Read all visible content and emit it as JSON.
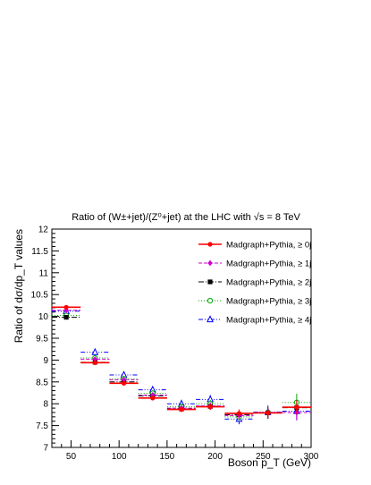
{
  "chart_data": {
    "type": "scatter",
    "title": "Ratio of (W±+jet)/(Z⁰+jet) at the LHC with √s = 8 TeV",
    "xlabel": "Boson p_T (GeV)",
    "ylabel": "Ratio of dσ/dp_T values",
    "xlim": [
      30,
      300
    ],
    "ylim": [
      7,
      12
    ],
    "x_ticks": [
      "50",
      "100",
      "150",
      "200",
      "250",
      "300"
    ],
    "y_ticks": [
      "7",
      "7.5",
      "8",
      "8.5",
      "9",
      "9.5",
      "10",
      "10.5",
      "11",
      "11.5",
      "12"
    ],
    "bin_edges": [
      30,
      60,
      90,
      120,
      150,
      180,
      210,
      240,
      270,
      300
    ],
    "x": [
      45,
      75,
      105,
      135,
      165,
      195,
      225,
      255,
      285
    ],
    "legend_position": "top-right",
    "series": [
      {
        "name": "Madgraph+Pythia, ≥ 0j",
        "color": "#ff0000",
        "line": "solid",
        "marker": "circle",
        "values": [
          10.21,
          8.94,
          8.47,
          8.13,
          7.87,
          7.93,
          7.78,
          7.79,
          7.92
        ],
        "errors": [
          0.04,
          0.05,
          0.05,
          0.05,
          0.06,
          0.07,
          0.09,
          0.12,
          0.16
        ]
      },
      {
        "name": "Madgraph+Pythia, ≥ 1j",
        "color": "#cc00cc",
        "line": "dashed",
        "marker": "diamond",
        "values": [
          10.14,
          9.02,
          8.55,
          8.2,
          7.9,
          7.95,
          7.73,
          7.8,
          7.8
        ],
        "errors": [
          0.04,
          0.05,
          0.05,
          0.06,
          0.07,
          0.08,
          0.1,
          0.12,
          0.17
        ]
      },
      {
        "name": "Madgraph+Pythia, ≥ 2j",
        "color": "#000000",
        "line": "dashdot",
        "marker": "square",
        "values": [
          9.98,
          8.95,
          8.5,
          8.18,
          7.88,
          7.94,
          7.75,
          7.79,
          7.91
        ],
        "errors": [
          0.05,
          0.06,
          0.06,
          0.06,
          0.07,
          0.08,
          0.1,
          0.13,
          0.17
        ]
      },
      {
        "name": "Madgraph+Pythia, ≥ 3j",
        "color": "#00aa00",
        "line": "dotted",
        "marker": "open-circle",
        "values": [
          10.02,
          9.05,
          8.57,
          8.24,
          7.93,
          8.0,
          7.7,
          7.8,
          8.03
        ],
        "errors": [
          0.06,
          0.07,
          0.07,
          0.07,
          0.08,
          0.09,
          0.11,
          0.14,
          0.2
        ]
      },
      {
        "name": "Madgraph+Pythia, ≥ 4j",
        "color": "#0000ff",
        "line": "dashdot2",
        "marker": "open-triangle",
        "values": [
          10.12,
          9.18,
          8.66,
          8.32,
          8.0,
          8.1,
          7.65,
          7.81,
          7.83
        ],
        "errors": [
          0.07,
          0.08,
          0.08,
          0.08,
          0.09,
          0.1,
          0.12,
          0.15,
          0.21
        ]
      }
    ]
  }
}
